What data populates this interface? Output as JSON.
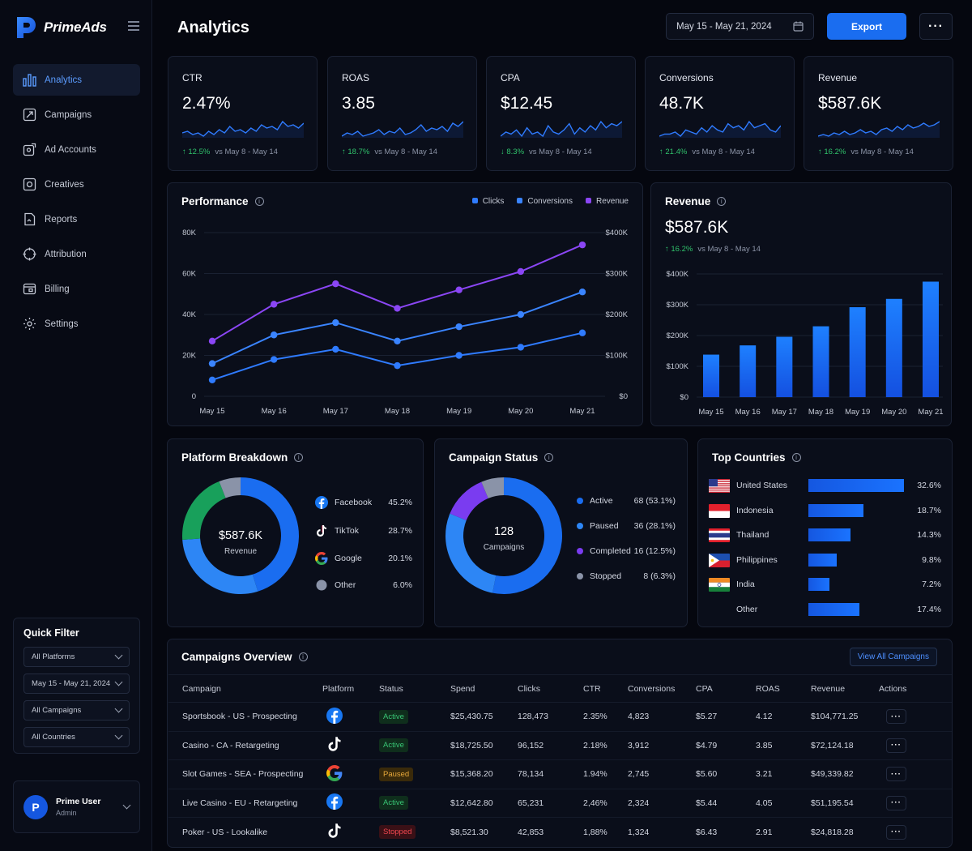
{
  "app": {
    "name": "PrimeAds"
  },
  "sidebar": {
    "items": [
      {
        "label": "Analytics",
        "icon": "bar-chart-icon",
        "active": true
      },
      {
        "label": "Campaigns",
        "icon": "megaphone-icon"
      },
      {
        "label": "Ad Accounts",
        "icon": "ad-accounts-icon"
      },
      {
        "label": "Creatives",
        "icon": "image-icon"
      },
      {
        "label": "Reports",
        "icon": "report-icon"
      },
      {
        "label": "Attribution",
        "icon": "target-icon"
      },
      {
        "label": "Billing",
        "icon": "wallet-icon"
      },
      {
        "label": "Settings",
        "icon": "gear-icon"
      }
    ]
  },
  "quick_filter": {
    "title": "Quick Filter",
    "platforms": "All Platforms",
    "date_range": "May 15 - May 21, 2024",
    "campaigns": "All Campaigns",
    "countries": "All Countries"
  },
  "user": {
    "initial": "P",
    "name": "Prime User",
    "role": "Admin"
  },
  "header": {
    "title": "Analytics",
    "date_range": "May 15 - May 21, 2024",
    "export_label": "Export",
    "more_label": "···"
  },
  "kpis": [
    {
      "label": "CTR",
      "value": "2.47%",
      "delta": "↑ 12.5%",
      "compare": "vs May 8 - May 14",
      "direction": "up",
      "spark": [
        5,
        6,
        4,
        5,
        3,
        6,
        4,
        7,
        5,
        9,
        6,
        7,
        5,
        8,
        6,
        10,
        8,
        9,
        7,
        12,
        9,
        10,
        8,
        11
      ]
    },
    {
      "label": "ROAS",
      "value": "3.85",
      "delta": "↑ 18.7%",
      "compare": "vs May 8 - May 14",
      "direction": "up",
      "spark": [
        4,
        6,
        5,
        7,
        4,
        5,
        6,
        8,
        5,
        7,
        6,
        9,
        5,
        6,
        8,
        11,
        7,
        9,
        8,
        10,
        7,
        12,
        10,
        13
      ]
    },
    {
      "label": "CPA",
      "value": "$12.45",
      "delta": "↓ 8.3%",
      "compare": "vs May 8 - May 14",
      "direction": "down",
      "spark": [
        5,
        7,
        6,
        8,
        5,
        9,
        6,
        7,
        5,
        10,
        7,
        6,
        8,
        11,
        6,
        9,
        7,
        10,
        8,
        12,
        9,
        11,
        10,
        12
      ]
    },
    {
      "label": "Conversions",
      "value": "48.7K",
      "delta": "↑ 21.4%",
      "compare": "vs May 8 - May 14",
      "direction": "up",
      "spark": [
        4,
        5,
        5,
        6,
        4,
        7,
        6,
        5,
        8,
        6,
        9,
        7,
        6,
        10,
        8,
        9,
        7,
        11,
        8,
        9,
        10,
        7,
        6,
        9
      ]
    },
    {
      "label": "Revenue",
      "value": "$587.6K",
      "delta": "↑ 16.2%",
      "compare": "vs May 8 - May 14",
      "direction": "up",
      "spark": [
        4,
        5,
        4,
        6,
        5,
        7,
        5,
        6,
        8,
        6,
        7,
        5,
        8,
        9,
        7,
        10,
        8,
        11,
        9,
        10,
        12,
        10,
        11,
        13
      ]
    }
  ],
  "performance": {
    "title": "Performance",
    "info": "i",
    "chart_data": {
      "type": "line",
      "categories": [
        "May 15",
        "May 16",
        "May 17",
        "May 18",
        "May 19",
        "May 20",
        "May 21"
      ],
      "y_left_ticks": [
        "0",
        "20K",
        "40K",
        "60K",
        "80K"
      ],
      "y_left_range": [
        0,
        80000
      ],
      "y_right_ticks": [
        "$0",
        "$100K",
        "$200K",
        "$300K",
        "$400K"
      ],
      "series": [
        {
          "name": "Clicks",
          "color": "#2f7bff",
          "values": [
            8000,
            18000,
            23000,
            15000,
            20000,
            24000,
            31000
          ]
        },
        {
          "name": "Conversions",
          "color": "#3a84ff",
          "values": [
            16000,
            30000,
            36000,
            27000,
            34000,
            40000,
            51000
          ]
        },
        {
          "name": "Revenue",
          "color": "#8b46f5",
          "values": [
            27000,
            45000,
            55000,
            43000,
            52000,
            61000,
            74000
          ]
        }
      ],
      "legend_position": "top-right",
      "grid": true
    }
  },
  "revenue": {
    "title": "Revenue",
    "info": "i",
    "value": "$587.6K",
    "delta": "↑ 16.2%",
    "compare": "vs May 8 - May 14",
    "chart_data": {
      "type": "bar",
      "categories": [
        "May 15",
        "May 16",
        "May 17",
        "May 18",
        "May 19",
        "May 20",
        "May 21"
      ],
      "values": [
        138000,
        168000,
        196000,
        230000,
        292000,
        319000,
        375000
      ],
      "y_ticks": [
        "$0",
        "$100K",
        "$200K",
        "$300K",
        "$400K"
      ],
      "ylim": [
        0,
        400000
      ],
      "grid": true
    }
  },
  "platform_breakdown": {
    "title": "Platform Breakdown",
    "info": "i",
    "center_value": "$587.6K",
    "center_label": "Revenue",
    "chart_data": {
      "type": "pie",
      "slices": [
        {
          "name": "Facebook",
          "value": 45.2,
          "label": "45.2%",
          "color": "#1a6df0",
          "icon": "facebook-icon"
        },
        {
          "name": "TikTok",
          "value": 28.7,
          "label": "28.7%",
          "color": "#2d86f5",
          "icon": "tiktok-icon"
        },
        {
          "name": "Google",
          "value": 20.1,
          "label": "20.1%",
          "color": "#18a05b",
          "icon": "google-icon"
        },
        {
          "name": "Other",
          "value": 6.0,
          "label": "6.0%",
          "color": "#8a93a8",
          "icon": "other-dot-icon"
        }
      ]
    }
  },
  "campaign_status": {
    "title": "Campaign Status",
    "info": "i",
    "center_value": "128",
    "center_label": "Campaigns",
    "chart_data": {
      "type": "pie",
      "slices": [
        {
          "name": "Active",
          "value": 53.1,
          "label": "68 (53.1%)",
          "color": "#1a6df0"
        },
        {
          "name": "Paused",
          "value": 28.1,
          "label": "36 (28.1%)",
          "color": "#2d86f5"
        },
        {
          "name": "Completed",
          "value": 12.5,
          "label": "16 (12.5%)",
          "color": "#7a3cf0"
        },
        {
          "name": "Stopped",
          "value": 6.3,
          "label": "8 (6.3%)",
          "color": "#8a93a8"
        }
      ]
    }
  },
  "top_countries": {
    "title": "Top Countries",
    "info": "i",
    "chart_data": {
      "type": "bar",
      "categories": [
        "United States",
        "Indonesia",
        "Thailand",
        "Philippines",
        "India",
        "Other"
      ],
      "values": [
        32.6,
        18.7,
        14.3,
        9.8,
        7.2,
        17.4
      ],
      "labels": [
        "32.6%",
        "18.7%",
        "14.3%",
        "9.8%",
        "7.2%",
        "17.4%"
      ],
      "flags": [
        "us-flag-icon",
        "id-flag-icon",
        "th-flag-icon",
        "ph-flag-icon",
        "in-flag-icon",
        ""
      ]
    }
  },
  "campaigns_overview": {
    "title": "Campaigns Overview",
    "info": "i",
    "view_all_label": "View All Campaigns",
    "columns": [
      "Campaign",
      "Platform",
      "Status",
      "Spend",
      "Clicks",
      "CTR",
      "Conversions",
      "CPA",
      "ROAS",
      "Revenue",
      "Actions"
    ],
    "rows": [
      {
        "campaign": "Sportsbook - US - Prospecting",
        "platform": "facebook-icon",
        "status": "Active",
        "spend": "$25,430.75",
        "clicks": "128,473",
        "ctr": "2.35%",
        "conversions": "4,823",
        "cpa": "$5.27",
        "roas": "4.12",
        "revenue": "$104,771.25"
      },
      {
        "campaign": "Casino - CA - Retargeting",
        "platform": "tiktok-icon",
        "status": "Active",
        "spend": "$18,725.50",
        "clicks": "96,152",
        "ctr": "2.18%",
        "conversions": "3,912",
        "cpa": "$4.79",
        "roas": "3.85",
        "revenue": "$72,124.18"
      },
      {
        "campaign": "Slot Games - SEA - Prospecting",
        "platform": "google-icon",
        "status": "Paused",
        "spend": "$15,368.20",
        "clicks": "78,134",
        "ctr": "1.94%",
        "conversions": "2,745",
        "cpa": "$5.60",
        "roas": "3.21",
        "revenue": "$49,339.82"
      },
      {
        "campaign": "Live Casino - EU - Retargeting",
        "platform": "facebook-icon",
        "status": "Active",
        "spend": "$12,642.80",
        "clicks": "65,231",
        "ctr": "2,46%",
        "conversions": "2,324",
        "cpa": "$5.44",
        "roas": "4.05",
        "revenue": "$51,195.54"
      },
      {
        "campaign": "Poker - US - Lookalike",
        "platform": "tiktok-icon",
        "status": "Stopped",
        "spend": "$8,521.30",
        "clicks": "42,853",
        "ctr": "1,88%",
        "conversions": "1,324",
        "cpa": "$6.43",
        "roas": "2.91",
        "revenue": "$24,818.28"
      }
    ],
    "action_label": "···"
  }
}
